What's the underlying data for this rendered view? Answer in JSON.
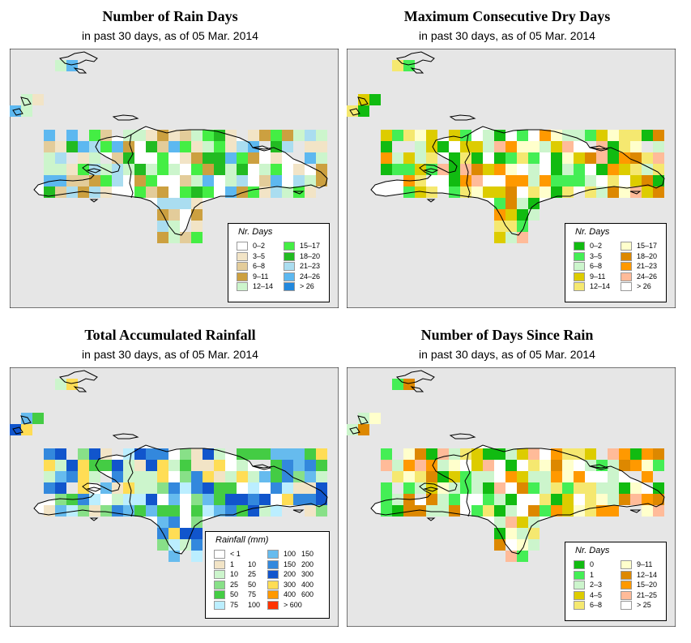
{
  "panels": [
    {
      "title": "Number of Rain Days",
      "subtitle": "in past 30 days, as of  05 Mar. 2014",
      "legend": {
        "title": "Nr. Days",
        "items": [
          {
            "label": "0–2",
            "color": "#ffffff"
          },
          {
            "label": "3–5",
            "color": "#f2e4c6"
          },
          {
            "label": "6–8",
            "color": "#e3cc9a"
          },
          {
            "label": "9–11",
            "color": "#cca040"
          },
          {
            "label": "12–14",
            "color": "#ccf5cc"
          },
          {
            "label": "15–17",
            "color": "#44ee44"
          },
          {
            "label": "18–20",
            "color": "#22bb22"
          },
          {
            "label": "21–23",
            "color": "#aaddf0"
          },
          {
            "label": "24–26",
            "color": "#5db8f0"
          },
          {
            "label": "> 26",
            "color": "#2288dd"
          }
        ]
      }
    },
    {
      "title": "Maximum Consecutive Dry Days",
      "subtitle": "in past 30 days, as of  05 Mar. 2014",
      "legend": {
        "title": "Nr. Days",
        "items": [
          {
            "label": "0–2",
            "color": "#11bb11"
          },
          {
            "label": "3–5",
            "color": "#44ee55"
          },
          {
            "label": "6–8",
            "color": "#ccf5cc"
          },
          {
            "label": "9–11",
            "color": "#ddcc00"
          },
          {
            "label": "12–14",
            "color": "#f5e870"
          },
          {
            "label": "15–17",
            "color": "#ffffcc"
          },
          {
            "label": "18–20",
            "color": "#dd8800"
          },
          {
            "label": "21–23",
            "color": "#ff9900"
          },
          {
            "label": "24–26",
            "color": "#ffbb99"
          },
          {
            "label": "> 26",
            "color": "#ffffff"
          }
        ]
      }
    },
    {
      "title": "Total Accumulated Rainfall",
      "subtitle": "in past 30 days, as of  05 Mar. 2014",
      "legend": {
        "title": "Rainfall (mm)",
        "items": [
          {
            "label": "< 1",
            "label2": "",
            "color": "#ffffff"
          },
          {
            "label": "1",
            "label2": "10",
            "color": "#f2e4c6"
          },
          {
            "label": "10",
            "label2": "25",
            "color": "#ccf5cc"
          },
          {
            "label": "25",
            "label2": "50",
            "color": "#88e088"
          },
          {
            "label": "50",
            "label2": "75",
            "color": "#44cc44"
          },
          {
            "label": "75",
            "label2": "100",
            "color": "#bbeeff"
          },
          {
            "label": "100",
            "label2": "150",
            "color": "#66bbee"
          },
          {
            "label": "150",
            "label2": "200",
            "color": "#3388dd"
          },
          {
            "label": "200",
            "label2": "300",
            "color": "#1155cc"
          },
          {
            "label": "300",
            "label2": "400",
            "color": "#ffdd55"
          },
          {
            "label": "400",
            "label2": "600",
            "color": "#ff9900"
          },
          {
            "label": "> 600",
            "label2": "",
            "color": "#ff3300"
          }
        ]
      }
    },
    {
      "title": "Number of Days Since Rain",
      "subtitle": "in past 30 days, as of  05 Mar. 2014",
      "legend": {
        "title": "Nr. Days",
        "items": [
          {
            "label": "0",
            "color": "#11bb11"
          },
          {
            "label": "1",
            "color": "#44ee55"
          },
          {
            "label": "2–3",
            "color": "#ccf5cc"
          },
          {
            "label": "4–5",
            "color": "#ddcc00"
          },
          {
            "label": "6–8",
            "color": "#f5e870"
          },
          {
            "label": "9–11",
            "color": "#ffffcc"
          },
          {
            "label": "12–14",
            "color": "#dd8800"
          },
          {
            "label": "15–20",
            "color": "#ff9900"
          },
          {
            "label": "21–25",
            "color": "#ffbb99"
          },
          {
            "label": "> 25",
            "color": "#ffffff"
          }
        ]
      }
    }
  ],
  "colors": {
    "map_background": "#e6e6e6",
    "coast": "#000000"
  }
}
